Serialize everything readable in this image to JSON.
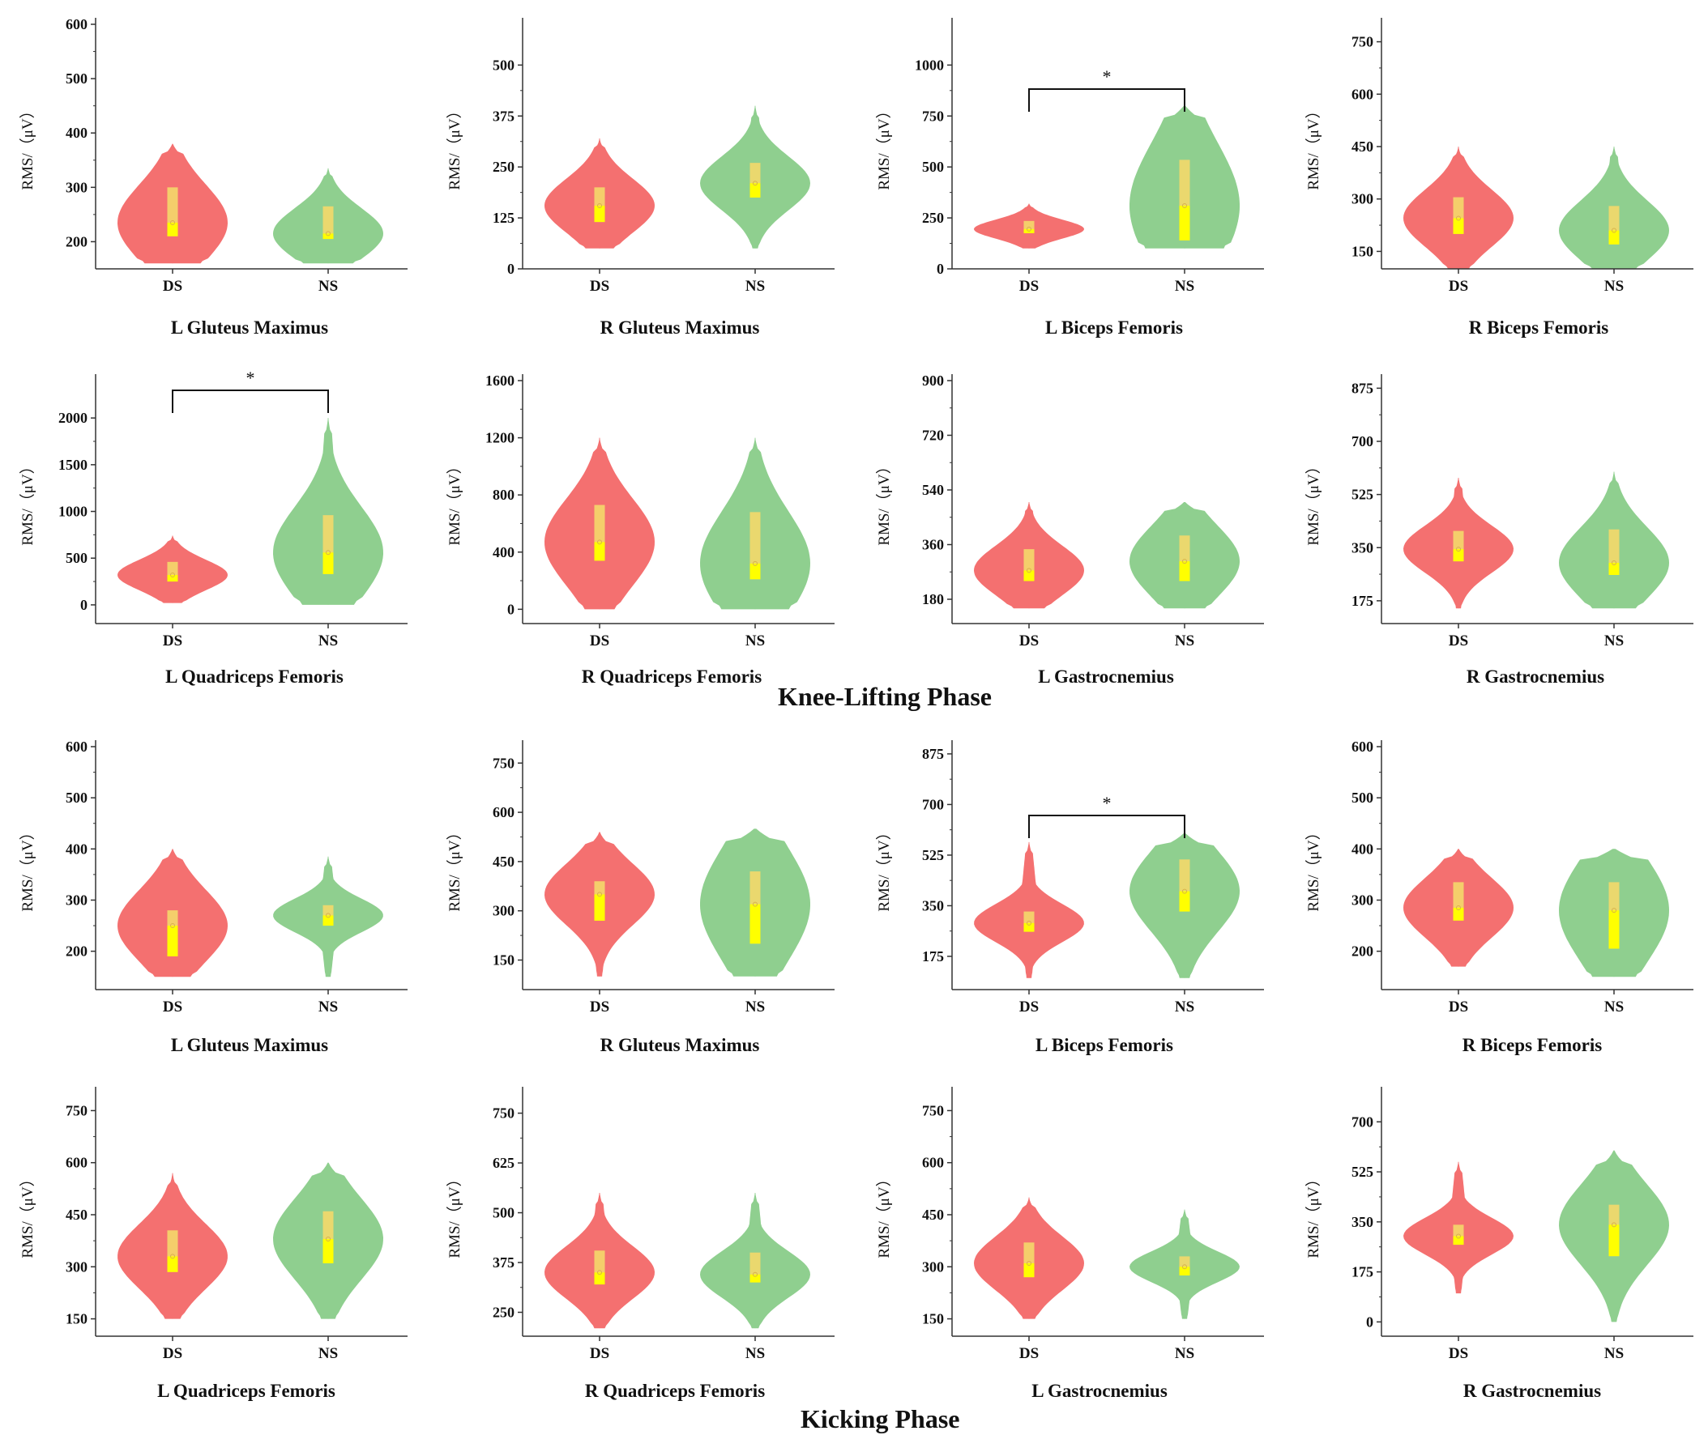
{
  "phase_titles": {
    "knee": "Knee-Lifting Phase",
    "kick": "Kicking Phase"
  },
  "colors": {
    "ds": "#f47070",
    "ns": "#8fcf8f",
    "box": "#f4d86a",
    "median": "#ffff00",
    "axis": "#333333"
  },
  "ylabel": "RMS/（μV）",
  "chart_data": [
    {
      "type": "violin",
      "phase": "Knee-Lifting Phase",
      "title": "L Gluteus Maximus",
      "categories": [
        "DS",
        "NS"
      ],
      "ylabel": "RMS/（μV）",
      "ylim": [
        150,
        600
      ],
      "yticks": [
        200,
        300,
        400,
        500,
        600
      ],
      "significance": false,
      "series": [
        {
          "name": "DS",
          "min": 160,
          "max": 380,
          "q1": 210,
          "q3": 300,
          "median": 235,
          "mean": 235
        },
        {
          "name": "NS",
          "min": 160,
          "max": 335,
          "q1": 205,
          "q3": 265,
          "median": 215,
          "mean": 215
        }
      ]
    },
    {
      "type": "violin",
      "phase": "Knee-Lifting Phase",
      "title": "R Gluteus Maximus",
      "categories": [
        "DS",
        "NS"
      ],
      "ylabel": "RMS/（μV）",
      "ylim": [
        0,
        600
      ],
      "yticks": [
        0,
        125,
        250,
        375,
        500
      ],
      "significance": false,
      "series": [
        {
          "name": "DS",
          "min": 50,
          "max": 320,
          "q1": 115,
          "q3": 200,
          "median": 155,
          "mean": 155
        },
        {
          "name": "NS",
          "min": 50,
          "max": 400,
          "q1": 175,
          "q3": 260,
          "median": 210,
          "mean": 210
        }
      ]
    },
    {
      "type": "violin",
      "phase": "Knee-Lifting Phase",
      "title": "L Biceps Femoris",
      "categories": [
        "DS",
        "NS"
      ],
      "ylabel": "RMS/（μV）",
      "ylim": [
        0,
        1200
      ],
      "yticks": [
        0,
        250,
        500,
        750,
        1000
      ],
      "significance": true,
      "sig_label": "*",
      "series": [
        {
          "name": "DS",
          "min": 100,
          "max": 320,
          "q1": 175,
          "q3": 235,
          "median": 195,
          "mean": 195
        },
        {
          "name": "NS",
          "min": 100,
          "max": 800,
          "q1": 140,
          "q3": 535,
          "median": 310,
          "mean": 310
        }
      ]
    },
    {
      "type": "violin",
      "phase": "Knee-Lifting Phase",
      "title": "R Biceps Femoris",
      "categories": [
        "DS",
        "NS"
      ],
      "ylabel": "RMS/（μV）",
      "ylim": [
        100,
        800
      ],
      "yticks": [
        150,
        300,
        450,
        600,
        750
      ],
      "significance": false,
      "series": [
        {
          "name": "DS",
          "min": 100,
          "max": 450,
          "q1": 200,
          "q3": 305,
          "median": 245,
          "mean": 245
        },
        {
          "name": "NS",
          "min": 100,
          "max": 450,
          "q1": 170,
          "q3": 280,
          "median": 210,
          "mean": 210
        }
      ]
    },
    {
      "type": "violin",
      "phase": "Knee-Lifting Phase",
      "title": "L Quadriceps Femoris",
      "categories": [
        "DS",
        "NS"
      ],
      "ylabel": "RMS/（μV）",
      "ylim": [
        -200,
        2400
      ],
      "yticks": [
        0,
        500,
        1000,
        1500,
        2000
      ],
      "significance": true,
      "sig_label": "*",
      "series": [
        {
          "name": "DS",
          "min": 20,
          "max": 740,
          "q1": 250,
          "q3": 460,
          "median": 320,
          "mean": 320
        },
        {
          "name": "NS",
          "min": 0,
          "max": 2000,
          "q1": 330,
          "q3": 960,
          "median": 560,
          "mean": 560
        }
      ]
    },
    {
      "type": "violin",
      "phase": "Knee-Lifting Phase",
      "title": "R Quadriceps Femoris",
      "categories": [
        "DS",
        "NS"
      ],
      "ylabel": "RMS/（μV）",
      "ylim": [
        -100,
        1600
      ],
      "yticks": [
        0,
        400,
        800,
        1200,
        1600
      ],
      "significance": false,
      "series": [
        {
          "name": "DS",
          "min": 0,
          "max": 1200,
          "q1": 340,
          "q3": 730,
          "median": 470,
          "mean": 470
        },
        {
          "name": "NS",
          "min": 0,
          "max": 1200,
          "q1": 210,
          "q3": 680,
          "median": 320,
          "mean": 320
        }
      ]
    },
    {
      "type": "violin",
      "phase": "Knee-Lifting Phase",
      "title": "L Gastrocnemius",
      "categories": [
        "DS",
        "NS"
      ],
      "ylabel": "RMS/（μV）",
      "ylim": [
        100,
        900
      ],
      "yticks": [
        180,
        360,
        540,
        720,
        900
      ],
      "significance": false,
      "series": [
        {
          "name": "DS",
          "min": 150,
          "max": 500,
          "q1": 240,
          "q3": 345,
          "median": 275,
          "mean": 275
        },
        {
          "name": "NS",
          "min": 150,
          "max": 500,
          "q1": 240,
          "q3": 390,
          "median": 305,
          "mean": 305
        }
      ]
    },
    {
      "type": "violin",
      "phase": "Knee-Lifting Phase",
      "title": "R Gastrocnemius",
      "categories": [
        "DS",
        "NS"
      ],
      "ylabel": "RMS/（μV）",
      "ylim": [
        100,
        900
      ],
      "yticks": [
        175,
        350,
        525,
        700,
        875
      ],
      "significance": false,
      "series": [
        {
          "name": "DS",
          "min": 150,
          "max": 580,
          "q1": 305,
          "q3": 405,
          "median": 345,
          "mean": 345
        },
        {
          "name": "NS",
          "min": 150,
          "max": 600,
          "q1": 260,
          "q3": 410,
          "median": 300,
          "mean": 300
        }
      ]
    },
    {
      "type": "violin",
      "phase": "Kicking Phase",
      "title": "L Gluteus Maximus",
      "categories": [
        "DS",
        "NS"
      ],
      "ylabel": "RMS/（μV）",
      "ylim": [
        125,
        600
      ],
      "yticks": [
        200,
        300,
        400,
        500,
        600
      ],
      "significance": false,
      "series": [
        {
          "name": "DS",
          "min": 150,
          "max": 400,
          "q1": 190,
          "q3": 280,
          "median": 250,
          "mean": 250
        },
        {
          "name": "NS",
          "min": 150,
          "max": 385,
          "q1": 250,
          "q3": 290,
          "median": 270,
          "mean": 270
        }
      ]
    },
    {
      "type": "violin",
      "phase": "Kicking Phase",
      "title": "R Gluteus Maximus",
      "categories": [
        "DS",
        "NS"
      ],
      "ylabel": "RMS/（μV）",
      "ylim": [
        60,
        800
      ],
      "yticks": [
        150,
        300,
        450,
        600,
        750
      ],
      "significance": false,
      "series": [
        {
          "name": "DS",
          "min": 100,
          "max": 540,
          "q1": 270,
          "q3": 390,
          "median": 350,
          "mean": 350
        },
        {
          "name": "NS",
          "min": 100,
          "max": 550,
          "q1": 200,
          "q3": 420,
          "median": 320,
          "mean": 320
        }
      ]
    },
    {
      "type": "violin",
      "phase": "Kicking Phase",
      "title": "L Biceps Femoris",
      "categories": [
        "DS",
        "NS"
      ],
      "ylabel": "RMS/（μV）",
      "ylim": [
        60,
        900
      ],
      "yticks": [
        175,
        350,
        525,
        700,
        875
      ],
      "significance": true,
      "sig_label": "*",
      "series": [
        {
          "name": "DS",
          "min": 100,
          "max": 570,
          "q1": 260,
          "q3": 330,
          "median": 290,
          "mean": 290
        },
        {
          "name": "NS",
          "min": 100,
          "max": 600,
          "q1": 330,
          "q3": 510,
          "median": 400,
          "mean": 400
        }
      ]
    },
    {
      "type": "violin",
      "phase": "Kicking Phase",
      "title": "R Biceps Femoris",
      "categories": [
        "DS",
        "NS"
      ],
      "ylabel": "RMS/（μV）",
      "ylim": [
        125,
        600
      ],
      "yticks": [
        200,
        300,
        400,
        500,
        600
      ],
      "significance": false,
      "series": [
        {
          "name": "DS",
          "min": 170,
          "max": 400,
          "q1": 260,
          "q3": 335,
          "median": 285,
          "mean": 285
        },
        {
          "name": "NS",
          "min": 150,
          "max": 400,
          "q1": 205,
          "q3": 335,
          "median": 280,
          "mean": 280
        }
      ]
    },
    {
      "type": "violin",
      "phase": "Kicking Phase",
      "title": "L Quadriceps Femoris",
      "categories": [
        "DS",
        "NS"
      ],
      "ylabel": "RMS/（μV）",
      "ylim": [
        100,
        800
      ],
      "yticks": [
        150,
        300,
        450,
        600,
        750
      ],
      "significance": false,
      "series": [
        {
          "name": "DS",
          "min": 150,
          "max": 570,
          "q1": 285,
          "q3": 405,
          "median": 330,
          "mean": 330
        },
        {
          "name": "NS",
          "min": 150,
          "max": 600,
          "q1": 310,
          "q3": 460,
          "median": 380,
          "mean": 380
        }
      ]
    },
    {
      "type": "violin",
      "phase": "Kicking Phase",
      "title": "R Quadriceps Femoris",
      "categories": [
        "DS",
        "NS"
      ],
      "ylabel": "RMS/（μV）",
      "ylim": [
        190,
        800
      ],
      "yticks": [
        250,
        375,
        500,
        625,
        750
      ],
      "significance": false,
      "series": [
        {
          "name": "DS",
          "min": 210,
          "max": 550,
          "q1": 320,
          "q3": 405,
          "median": 350,
          "mean": 350
        },
        {
          "name": "NS",
          "min": 210,
          "max": 550,
          "q1": 325,
          "q3": 400,
          "median": 345,
          "mean": 345
        }
      ]
    },
    {
      "type": "violin",
      "phase": "Kicking Phase",
      "title": "L Gastrocnemius",
      "categories": [
        "DS",
        "NS"
      ],
      "ylabel": "RMS/（μV）",
      "ylim": [
        100,
        800
      ],
      "yticks": [
        150,
        300,
        450,
        600,
        750
      ],
      "significance": false,
      "series": [
        {
          "name": "DS",
          "min": 150,
          "max": 500,
          "q1": 270,
          "q3": 370,
          "median": 310,
          "mean": 310
        },
        {
          "name": "NS",
          "min": 150,
          "max": 465,
          "q1": 275,
          "q3": 330,
          "median": 300,
          "mean": 300
        }
      ]
    },
    {
      "type": "violin",
      "phase": "Kicking Phase",
      "title": "R Gastrocnemius",
      "categories": [
        "DS",
        "NS"
      ],
      "ylabel": "RMS/（μV）",
      "ylim": [
        -50,
        800
      ],
      "yticks": [
        0,
        175,
        350,
        525,
        700
      ],
      "significance": false,
      "series": [
        {
          "name": "DS",
          "min": 100,
          "max": 560,
          "q1": 270,
          "q3": 340,
          "median": 300,
          "mean": 300
        },
        {
          "name": "NS",
          "min": 0,
          "max": 600,
          "q1": 230,
          "q3": 410,
          "median": 340,
          "mean": 340
        }
      ]
    }
  ]
}
